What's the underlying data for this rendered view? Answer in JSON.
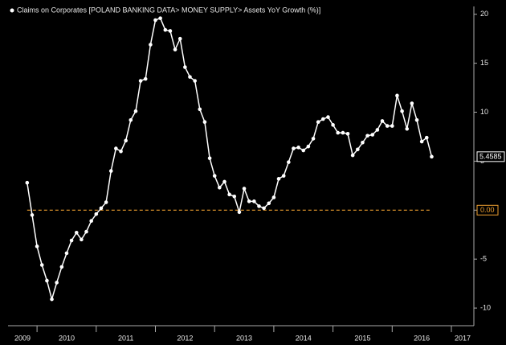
{
  "chart_data": {
    "type": "line",
    "legend_label": "Claims on Corporates [POLAND BANKING DATA> MONEY SUPPLY> Assets YoY Growth (%)]",
    "x": [
      2009.833,
      2009.917,
      2010.0,
      2010.083,
      2010.167,
      2010.25,
      2010.333,
      2010.417,
      2010.5,
      2010.583,
      2010.667,
      2010.75,
      2010.833,
      2010.917,
      2011.0,
      2011.083,
      2011.167,
      2011.25,
      2011.333,
      2011.417,
      2011.5,
      2011.583,
      2011.667,
      2011.75,
      2011.833,
      2011.917,
      2012.0,
      2012.083,
      2012.167,
      2012.25,
      2012.333,
      2012.417,
      2012.5,
      2012.583,
      2012.667,
      2012.75,
      2012.833,
      2012.917,
      2013.0,
      2013.083,
      2013.167,
      2013.25,
      2013.333,
      2013.417,
      2013.5,
      2013.583,
      2013.667,
      2013.75,
      2013.833,
      2013.917,
      2014.0,
      2014.083,
      2014.167,
      2014.25,
      2014.333,
      2014.417,
      2014.5,
      2014.583,
      2014.667,
      2014.75,
      2014.833,
      2014.917,
      2015.0,
      2015.083,
      2015.167,
      2015.25,
      2015.333,
      2015.417,
      2015.5,
      2015.583,
      2015.667,
      2015.75,
      2015.833,
      2015.917,
      2016.0,
      2016.083,
      2016.167,
      2016.25,
      2016.333,
      2016.417,
      2016.5,
      2016.583,
      2016.667
    ],
    "series": [
      {
        "name": "Claims on Corporates",
        "color": "#ffffff",
        "values": [
          2.8,
          -0.5,
          -3.7,
          -5.6,
          -7.2,
          -9.1,
          -7.4,
          -5.8,
          -4.4,
          -3.1,
          -2.3,
          -3.0,
          -2.2,
          -1.1,
          -0.4,
          0.2,
          0.8,
          4.0,
          6.3,
          6.0,
          7.1,
          9.2,
          10.1,
          13.2,
          13.4,
          16.9,
          19.4,
          19.6,
          18.4,
          18.3,
          16.4,
          17.5,
          14.6,
          13.6,
          13.2,
          10.3,
          9.0,
          5.3,
          3.5,
          2.3,
          2.9,
          1.6,
          1.4,
          -0.2,
          2.2,
          0.9,
          0.9,
          0.4,
          0.2,
          0.7,
          1.3,
          3.2,
          3.5,
          4.9,
          6.3,
          6.4,
          6.1,
          6.5,
          7.3,
          9.0,
          9.3,
          9.5,
          8.7,
          7.9,
          7.9,
          7.8,
          5.6,
          6.2,
          6.9,
          7.6,
          7.7,
          8.2,
          9.1,
          8.6,
          8.6,
          11.7,
          10.1,
          8.3,
          10.9,
          9.2,
          7.0,
          7.4,
          5.4585
        ]
      }
    ],
    "reference_line": {
      "value": 0,
      "label": "0.00",
      "color": "#f0a030"
    },
    "xlim": [
      2009.51,
      2017.38
    ],
    "xticks": [
      2009,
      2010,
      2011,
      2012,
      2013,
      2014,
      2015,
      2016,
      2017
    ],
    "ylim": [
      -11.8,
      20.8
    ],
    "yticks": [
      -10,
      -5,
      0,
      5,
      10,
      15,
      20
    ]
  }
}
